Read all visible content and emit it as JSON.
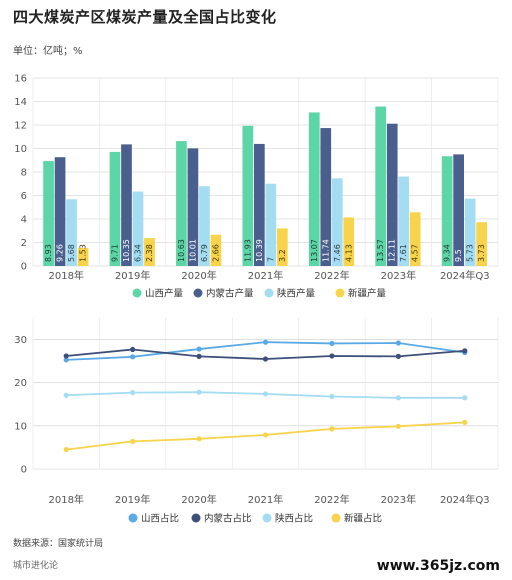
{
  "title": "四大煤炭产区煤炭产量及全国占比变化",
  "unit": "单位：亿吨；%",
  "source": "数据来源：国家统计局",
  "brand": "城市进化论",
  "site_watermark": "www.365jz.com",
  "colors": {
    "shanxi": "#5dd6a7",
    "neimenggu": "#4a5f8d",
    "shaanxi": "#a4dcf2",
    "xinjiang": "#f7d44c",
    "line_shanxi": "#5aa9e6",
    "line_neimenggu": "#3d4f7a",
    "line_shaanxi": "#a4dcf2",
    "line_xinjiang": "#f7d44c",
    "grid": "#cccccc",
    "axis_text": "#555555"
  },
  "chart_data": [
    {
      "type": "bar",
      "categories": [
        "2018年",
        "2019年",
        "2020年",
        "2021年",
        "2022年",
        "2023年",
        "2024年Q3"
      ],
      "ylim": [
        0,
        16
      ],
      "yticks": [
        0,
        2,
        4,
        6,
        8,
        10,
        12,
        14,
        16
      ],
      "grid": true,
      "legend_position": "bottom",
      "series": [
        {
          "name": "山西产量",
          "values": [
            8.93,
            9.71,
            10.63,
            11.93,
            13.07,
            13.57,
            9.34
          ]
        },
        {
          "name": "内蒙古产量",
          "values": [
            9.26,
            10.35,
            10.01,
            10.39,
            11.74,
            12.11,
            9.5
          ]
        },
        {
          "name": "陕西产量",
          "values": [
            5.68,
            6.34,
            6.79,
            7,
            7.46,
            7.61,
            5.73
          ]
        },
        {
          "name": "新疆产量",
          "values": [
            1.53,
            2.38,
            2.66,
            3.2,
            4.13,
            4.57,
            3.73
          ]
        }
      ],
      "data_labels": [
        [
          "8.93",
          "9.26",
          "5.68",
          "1.53"
        ],
        [
          "9.71",
          "10.35",
          "6.34",
          "2.38"
        ],
        [
          "10.63",
          "10.01",
          "6.79",
          "2.66"
        ],
        [
          "11.93",
          "10.39",
          "7",
          "3.2"
        ],
        [
          "13.07",
          "11.74",
          "7.46",
          "4.13"
        ],
        [
          "13.57",
          "12.11",
          "7.61",
          "4.57"
        ],
        [
          "9.34",
          "9.5",
          "5.73",
          "3.73"
        ]
      ]
    },
    {
      "type": "line",
      "categories": [
        "2018年",
        "2019年",
        "2020年",
        "2021年",
        "2022年",
        "2023年",
        "2024年Q3"
      ],
      "ylim": [
        0,
        30
      ],
      "yticks": [
        0,
        10,
        20,
        30
      ],
      "grid": true,
      "legend_position": "bottom",
      "series": [
        {
          "name": "山西占比",
          "values": [
            25.3,
            26.0,
            27.8,
            29.4,
            29.1,
            29.2,
            27.0
          ]
        },
        {
          "name": "内蒙古占比",
          "values": [
            26.2,
            27.7,
            26.1,
            25.5,
            26.2,
            26.1,
            27.4
          ]
        },
        {
          "name": "陕西占比",
          "values": [
            17.1,
            17.7,
            17.8,
            17.4,
            16.8,
            16.5,
            16.5
          ]
        },
        {
          "name": "新疆占比",
          "values": [
            4.5,
            6.4,
            7.0,
            7.9,
            9.3,
            9.9,
            10.8
          ]
        }
      ]
    }
  ]
}
